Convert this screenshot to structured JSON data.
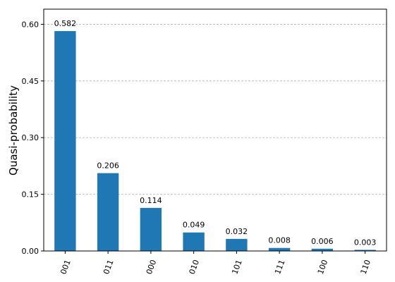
{
  "chart_data": {
    "type": "bar",
    "categories": [
      "001",
      "011",
      "000",
      "010",
      "101",
      "111",
      "100",
      "110"
    ],
    "values": [
      0.582,
      0.206,
      0.114,
      0.049,
      0.032,
      0.008,
      0.006,
      0.003
    ],
    "value_labels": [
      "0.582",
      "0.206",
      "0.114",
      "0.049",
      "0.032",
      "0.008",
      "0.006",
      "0.003"
    ],
    "yticks": [
      "0.00",
      "0.15",
      "0.30",
      "0.45",
      "0.60"
    ],
    "ylabel": "Quasi-probability",
    "ylim": [
      0,
      0.64
    ],
    "grid": "horizontal dashed",
    "bar_color": "#1f77b4"
  }
}
